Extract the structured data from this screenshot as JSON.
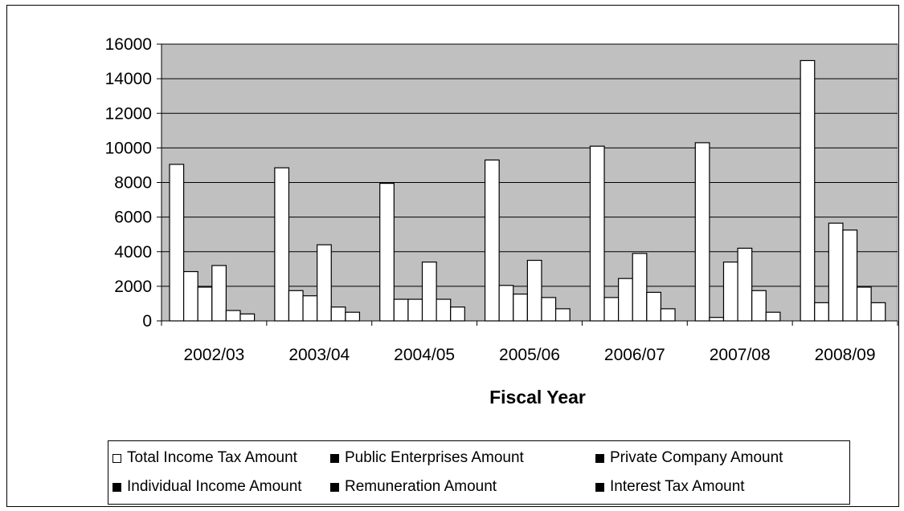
{
  "chart_data": {
    "type": "bar",
    "categories": [
      "2002/03",
      "2003/04",
      "2004/05",
      "2005/06",
      "2006/07",
      "2007/08",
      "2008/09"
    ],
    "series": [
      {
        "name": "Total Income Tax Amount",
        "color": "#ffffff",
        "values": [
          9050,
          8850,
          7950,
          9300,
          10100,
          10300,
          15050
        ]
      },
      {
        "name": "Public Enterprises Amount",
        "color": "#000000",
        "values": [
          2850,
          1750,
          1250,
          2050,
          1350,
          200,
          1050
        ]
      },
      {
        "name": "Private Company Amount",
        "color": "#000000",
        "values": [
          1950,
          1450,
          1250,
          1550,
          2450,
          3400,
          5650
        ]
      },
      {
        "name": "Individual Income Amount",
        "color": "#000000",
        "values": [
          3200,
          4400,
          3400,
          3500,
          3900,
          4200,
          5250
        ]
      },
      {
        "name": "Remuneration Amount",
        "color": "#000000",
        "values": [
          600,
          800,
          1250,
          1350,
          1650,
          1750,
          1950
        ]
      },
      {
        "name": "Interest Tax Amount",
        "color": "#000000",
        "values": [
          400,
          500,
          800,
          700,
          700,
          500,
          1050
        ]
      }
    ],
    "bar_fill": "#ffffff",
    "plot_background": "#c0c0c0",
    "title": "",
    "xlabel": "Fiscal Year",
    "ylabel": "",
    "ylim": [
      0,
      16000
    ],
    "yticks": [
      0,
      2000,
      4000,
      6000,
      8000,
      10000,
      12000,
      14000,
      16000
    ],
    "grid": true,
    "legend_position": "bottom"
  }
}
